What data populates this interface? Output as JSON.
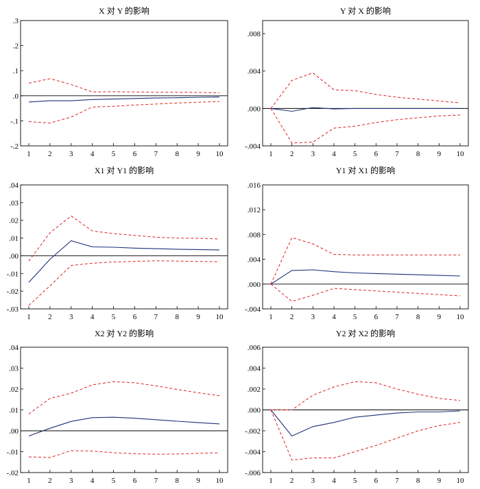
{
  "chart_data": [
    {
      "type": "line",
      "title": "X 对 Y 的影响",
      "x": [
        1,
        2,
        3,
        4,
        5,
        6,
        7,
        8,
        9,
        10
      ],
      "ylim": [
        -0.2,
        0.3
      ],
      "yticks": [
        -0.2,
        -0.1,
        0.0,
        0.1,
        0.2,
        0.3
      ],
      "ytick_labels": [
        "-.2",
        "-.1",
        ".0",
        ".1",
        ".2",
        ".3"
      ],
      "series": [
        {
          "role": "response",
          "values": [
            -0.025,
            -0.02,
            -0.02,
            -0.015,
            -0.013,
            -0.011,
            -0.009,
            -0.008,
            -0.006,
            -0.005
          ]
        },
        {
          "role": "upper",
          "values": [
            0.05,
            0.068,
            0.045,
            0.015,
            0.016,
            0.015,
            0.014,
            0.014,
            0.013,
            0.012
          ]
        },
        {
          "role": "lower",
          "values": [
            -0.103,
            -0.109,
            -0.085,
            -0.045,
            -0.042,
            -0.037,
            -0.033,
            -0.029,
            -0.026,
            -0.023
          ]
        }
      ]
    },
    {
      "type": "line",
      "title": "Y 对 X 的影响",
      "x": [
        1,
        2,
        3,
        4,
        5,
        6,
        7,
        8,
        9,
        10
      ],
      "ylim": [
        -0.004,
        0.0094
      ],
      "yticks": [
        -0.004,
        0.0,
        0.004,
        0.008
      ],
      "ytick_labels": [
        "-.004",
        ".000",
        ".004",
        ".008"
      ],
      "series": [
        {
          "role": "response",
          "values": [
            0.0,
            -0.0003,
            0.0001,
            -5e-05,
            0.0,
            0.0,
            0.0,
            0.0,
            0.0,
            0.0
          ]
        },
        {
          "role": "upper",
          "values": [
            0.0,
            0.003,
            0.0038,
            0.002,
            0.0019,
            0.0015,
            0.0012,
            0.001,
            0.0008,
            0.0006
          ]
        },
        {
          "role": "lower",
          "values": [
            0.0,
            -0.0037,
            -0.0036,
            -0.0021,
            -0.0019,
            -0.0015,
            -0.0012,
            -0.001,
            -0.0008,
            -0.0007
          ]
        }
      ]
    },
    {
      "type": "line",
      "title": "X1 对 Y1 的影响",
      "x": [
        1,
        2,
        3,
        4,
        5,
        6,
        7,
        8,
        9,
        10
      ],
      "ylim": [
        -0.03,
        0.04
      ],
      "yticks": [
        -0.03,
        -0.02,
        -0.01,
        0.0,
        0.01,
        0.02,
        0.03,
        0.04
      ],
      "ytick_labels": [
        "-.03",
        "-.02",
        "-.01",
        ".00",
        ".01",
        ".02",
        ".03",
        ".04"
      ],
      "series": [
        {
          "role": "response",
          "values": [
            -0.015,
            -0.002,
            0.0085,
            0.005,
            0.0048,
            0.0043,
            0.004,
            0.0037,
            0.0035,
            0.0033
          ]
        },
        {
          "role": "upper",
          "values": [
            -0.003,
            0.013,
            0.0225,
            0.014,
            0.0125,
            0.0115,
            0.0105,
            0.01,
            0.0098,
            0.0095
          ]
        },
        {
          "role": "lower",
          "values": [
            -0.028,
            -0.017,
            -0.0055,
            -0.0042,
            -0.0035,
            -0.0032,
            -0.0028,
            -0.003,
            -0.0032,
            -0.0034
          ]
        }
      ]
    },
    {
      "type": "line",
      "title": "Y1 对 X1 的影响",
      "x": [
        1,
        2,
        3,
        4,
        5,
        6,
        7,
        8,
        9,
        10
      ],
      "ylim": [
        -0.004,
        0.016
      ],
      "yticks": [
        -0.004,
        0.0,
        0.004,
        0.008,
        0.012,
        0.016
      ],
      "ytick_labels": [
        "-.004",
        ".000",
        ".004",
        ".008",
        ".012",
        ".016"
      ],
      "series": [
        {
          "role": "response",
          "values": [
            0.0,
            0.0022,
            0.0023,
            0.002,
            0.0018,
            0.0017,
            0.0016,
            0.0015,
            0.0014,
            0.0013
          ]
        },
        {
          "role": "upper",
          "values": [
            0.0,
            0.0075,
            0.0065,
            0.0048,
            0.0047,
            0.0047,
            0.0047,
            0.0047,
            0.0047,
            0.0047
          ]
        },
        {
          "role": "lower",
          "values": [
            0.0,
            -0.0028,
            -0.0018,
            -0.0007,
            -0.0009,
            -0.0011,
            -0.0013,
            -0.0015,
            -0.0017,
            -0.0019
          ]
        }
      ]
    },
    {
      "type": "line",
      "title": "X2 对 Y2 的影响",
      "x": [
        1,
        2,
        3,
        4,
        5,
        6,
        7,
        8,
        9,
        10
      ],
      "ylim": [
        -0.02,
        0.04
      ],
      "yticks": [
        -0.02,
        -0.01,
        0.0,
        0.01,
        0.02,
        0.03,
        0.04
      ],
      "ytick_labels": [
        "-.02",
        "-.01",
        ".00",
        ".01",
        ".02",
        ".03",
        ".04"
      ],
      "series": [
        {
          "role": "response",
          "values": [
            -0.0025,
            0.0012,
            0.0045,
            0.0063,
            0.0065,
            0.006,
            0.0053,
            0.0046,
            0.0039,
            0.0033
          ]
        },
        {
          "role": "upper",
          "values": [
            0.008,
            0.0155,
            0.018,
            0.022,
            0.0235,
            0.023,
            0.0215,
            0.0198,
            0.0182,
            0.0168
          ]
        },
        {
          "role": "lower",
          "values": [
            -0.0125,
            -0.0128,
            -0.0095,
            -0.0097,
            -0.0105,
            -0.011,
            -0.0112,
            -0.0111,
            -0.0108,
            -0.0105
          ]
        }
      ]
    },
    {
      "type": "line",
      "title": "Y2 对 X2 的影响",
      "x": [
        1,
        2,
        3,
        4,
        5,
        6,
        7,
        8,
        9,
        10
      ],
      "ylim": [
        -0.006,
        0.006
      ],
      "yticks": [
        -0.006,
        -0.004,
        -0.002,
        0.0,
        0.002,
        0.004,
        0.006
      ],
      "ytick_labels": [
        "-.006",
        "-.004",
        "-.002",
        ".000",
        ".002",
        ".004",
        ".006"
      ],
      "series": [
        {
          "role": "response",
          "values": [
            0.0,
            -0.0025,
            -0.0016,
            -0.0012,
            -0.0007,
            -0.0005,
            -0.0003,
            -0.0002,
            -0.0002,
            -0.0001
          ]
        },
        {
          "role": "upper",
          "values": [
            0.0,
            0.0,
            0.0014,
            0.0022,
            0.0027,
            0.0026,
            0.002,
            0.0015,
            0.0011,
            0.0009
          ]
        },
        {
          "role": "lower",
          "values": [
            0.0,
            -0.0048,
            -0.0046,
            -0.0046,
            -0.004,
            -0.0034,
            -0.0027,
            -0.002,
            -0.0015,
            -0.0012
          ]
        }
      ]
    }
  ],
  "colors": {
    "response": "#1f2f7a",
    "band": "#e02020",
    "axis": "#000000"
  }
}
